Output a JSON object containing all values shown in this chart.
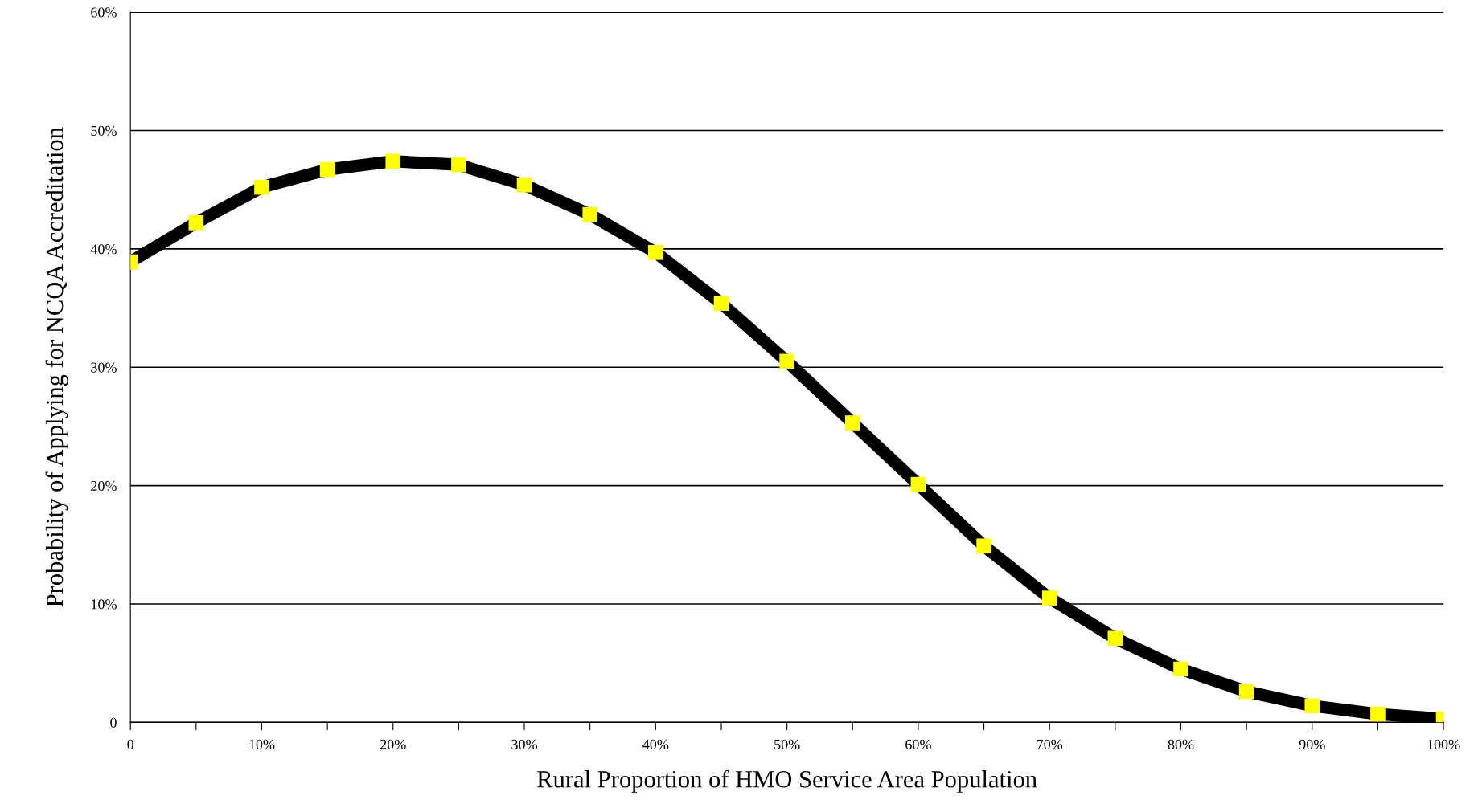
{
  "chart_data": {
    "type": "line",
    "xlabel": "Rural Proportion of HMO Service Area Population",
    "ylabel": "Probability of Applying for NCQA Accreditation",
    "x": [
      0,
      5,
      10,
      15,
      20,
      25,
      30,
      35,
      40,
      45,
      50,
      55,
      60,
      65,
      70,
      75,
      80,
      85,
      90,
      95,
      100
    ],
    "series": [
      {
        "type": "line",
        "color": "#000000",
        "marker": "none",
        "values": [
          38.9,
          42.2,
          45.2,
          46.7,
          47.4,
          47.1,
          45.4,
          42.9,
          39.7,
          35.4,
          30.5,
          25.3,
          20.1,
          14.9,
          10.5,
          7.1,
          4.5,
          2.6,
          1.4,
          0.7,
          0.3
        ]
      },
      {
        "type": "scatter",
        "color": "#ffff00",
        "marker": "square",
        "values": [
          38.9,
          42.2,
          45.2,
          46.7,
          47.4,
          47.1,
          45.4,
          42.9,
          39.7,
          35.4,
          30.5,
          25.3,
          20.1,
          14.9,
          10.5,
          7.1,
          4.5,
          2.6,
          1.4,
          0.7,
          0.3
        ]
      }
    ],
    "xlim": [
      0,
      100
    ],
    "xticks": [
      {
        "value": 0,
        "label": "0"
      },
      {
        "value": 5,
        "label": null
      },
      {
        "value": 10,
        "label": "10%"
      },
      {
        "value": 15,
        "label": null
      },
      {
        "value": 20,
        "label": "20%"
      },
      {
        "value": 25,
        "label": null
      },
      {
        "value": 30,
        "label": "30%"
      },
      {
        "value": 35,
        "label": null
      },
      {
        "value": 40,
        "label": "40%"
      },
      {
        "value": 45,
        "label": null
      },
      {
        "value": 50,
        "label": "50%"
      },
      {
        "value": 55,
        "label": null
      },
      {
        "value": 60,
        "label": "60%"
      },
      {
        "value": 65,
        "label": null
      },
      {
        "value": 70,
        "label": "70%"
      },
      {
        "value": 75,
        "label": null
      },
      {
        "value": 80,
        "label": "80%"
      },
      {
        "value": 85,
        "label": null
      },
      {
        "value": 90,
        "label": "90%"
      },
      {
        "value": 95,
        "label": null
      },
      {
        "value": 100,
        "label": "100%"
      }
    ],
    "ylim": [
      0,
      60
    ],
    "yticks": [
      {
        "value": 0,
        "label": "0"
      },
      {
        "value": 10,
        "label": "10%"
      },
      {
        "value": 20,
        "label": "20%"
      },
      {
        "value": 30,
        "label": "30%"
      },
      {
        "value": 40,
        "label": "40%"
      },
      {
        "value": 50,
        "label": "50%"
      },
      {
        "value": 60,
        "label": "60%"
      }
    ],
    "grid": "y"
  }
}
